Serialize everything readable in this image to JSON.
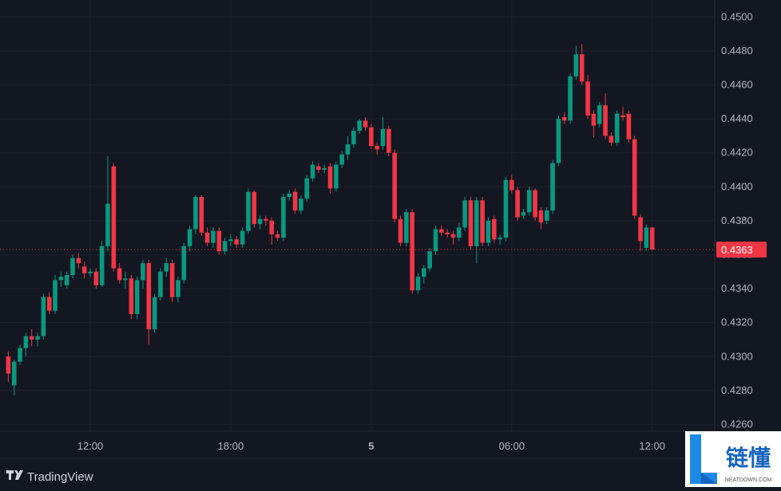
{
  "chart_data": {
    "type": "candlestick",
    "up_color": "#089981",
    "down_color": "#f23645",
    "grid": true,
    "categories": [
      null,
      null,
      null,
      null,
      null,
      null,
      null,
      null,
      null,
      null,
      null,
      null,
      null,
      null,
      "12:00",
      null,
      null,
      null,
      null,
      null,
      null,
      null,
      null,
      null,
      null,
      null,
      null,
      null,
      null,
      null,
      null,
      null,
      null,
      null,
      null,
      null,
      null,
      null,
      "18:00",
      null,
      null,
      null,
      null,
      null,
      null,
      null,
      null,
      null,
      null,
      null,
      null,
      null,
      null,
      null,
      null,
      null,
      null,
      null,
      null,
      null,
      null,
      null,
      "5",
      null,
      null,
      null,
      null,
      null,
      null,
      null,
      null,
      null,
      null,
      null,
      null,
      null,
      null,
      null,
      null,
      null,
      null,
      null,
      null,
      null,
      null,
      null,
      "06:00",
      null,
      null,
      null,
      null,
      null,
      null,
      null,
      null,
      null,
      null,
      null,
      null,
      null,
      null,
      null,
      null,
      null,
      null,
      null,
      null,
      null,
      null,
      null,
      "12:00"
    ],
    "candles": [
      [
        0.43,
        0.4303,
        0.4285,
        0.429
      ],
      [
        0.4283,
        0.4298,
        0.4277,
        0.4297
      ],
      [
        0.4297,
        0.4307,
        0.4295,
        0.4305
      ],
      [
        0.4305,
        0.4314,
        0.43,
        0.4312
      ],
      [
        0.4312,
        0.4316,
        0.4306,
        0.431
      ],
      [
        0.431,
        0.4314,
        0.4306,
        0.4312
      ],
      [
        0.4312,
        0.4337,
        0.431,
        0.4335
      ],
      [
        0.4335,
        0.4338,
        0.4325,
        0.4327
      ],
      [
        0.4327,
        0.4348,
        0.4325,
        0.4345
      ],
      [
        0.4345,
        0.435,
        0.4341,
        0.4347
      ],
      [
        0.4342,
        0.435,
        0.434,
        0.4348
      ],
      [
        0.4348,
        0.436,
        0.4346,
        0.4358
      ],
      [
        0.4358,
        0.4361,
        0.4352,
        0.4355
      ],
      [
        0.4353,
        0.4356,
        0.4346,
        0.4349
      ],
      [
        0.4349,
        0.4352,
        0.4347,
        0.435
      ],
      [
        0.435,
        0.4352,
        0.434,
        0.4342
      ],
      [
        0.4342,
        0.4368,
        0.4341,
        0.4365
      ],
      [
        0.4365,
        0.4418,
        0.4362,
        0.439
      ],
      [
        0.4412,
        0.4414,
        0.435,
        0.4352
      ],
      [
        0.4352,
        0.4355,
        0.4343,
        0.4345
      ],
      [
        0.4345,
        0.435,
        0.434,
        0.4346
      ],
      [
        0.4346,
        0.4348,
        0.4322,
        0.4325
      ],
      [
        0.4325,
        0.4347,
        0.4322,
        0.4345
      ],
      [
        0.4345,
        0.4357,
        0.434,
        0.4355
      ],
      [
        0.4355,
        0.4357,
        0.4307,
        0.4316
      ],
      [
        0.4316,
        0.4337,
        0.4314,
        0.4335
      ],
      [
        0.4335,
        0.4352,
        0.4333,
        0.435
      ],
      [
        0.435,
        0.4358,
        0.4347,
        0.4355
      ],
      [
        0.4355,
        0.4357,
        0.4332,
        0.4335
      ],
      [
        0.4335,
        0.4347,
        0.4332,
        0.4345
      ],
      [
        0.4345,
        0.4367,
        0.4343,
        0.4365
      ],
      [
        0.4365,
        0.4377,
        0.4362,
        0.4375
      ],
      [
        0.4375,
        0.4395,
        0.4372,
        0.4394
      ],
      [
        0.4394,
        0.4395,
        0.4371,
        0.4373
      ],
      [
        0.4373,
        0.4376,
        0.4365,
        0.4367
      ],
      [
        0.4367,
        0.4376,
        0.4364,
        0.4374
      ],
      [
        0.4374,
        0.4376,
        0.436,
        0.4362
      ],
      [
        0.4362,
        0.437,
        0.436,
        0.4368
      ],
      [
        0.4368,
        0.4372,
        0.4365,
        0.4369
      ],
      [
        0.4369,
        0.4371,
        0.4364,
        0.4366
      ],
      [
        0.4366,
        0.4376,
        0.4364,
        0.4374
      ],
      [
        0.4374,
        0.4399,
        0.4372,
        0.4397
      ],
      [
        0.4397,
        0.4398,
        0.4376,
        0.4378
      ],
      [
        0.4378,
        0.4383,
        0.4375,
        0.4381
      ],
      [
        0.4381,
        0.4383,
        0.4377,
        0.438
      ],
      [
        0.438,
        0.4382,
        0.4366,
        0.4372
      ],
      [
        0.4372,
        0.4374,
        0.4368,
        0.437
      ],
      [
        0.437,
        0.4396,
        0.4368,
        0.4394
      ],
      [
        0.4394,
        0.4398,
        0.4392,
        0.4396
      ],
      [
        0.4397,
        0.4399,
        0.4384,
        0.4386
      ],
      [
        0.4386,
        0.4395,
        0.4384,
        0.4393
      ],
      [
        0.4393,
        0.4407,
        0.4391,
        0.4405
      ],
      [
        0.4405,
        0.4415,
        0.4403,
        0.4413
      ],
      [
        0.4412,
        0.4414,
        0.4408,
        0.441
      ],
      [
        0.441,
        0.4413,
        0.4408,
        0.4411
      ],
      [
        0.4412,
        0.4414,
        0.4396,
        0.4399
      ],
      [
        0.4399,
        0.4415,
        0.4397,
        0.4413
      ],
      [
        0.4413,
        0.4421,
        0.4411,
        0.4419
      ],
      [
        0.4419,
        0.443,
        0.4416,
        0.4425
      ],
      [
        0.4425,
        0.4435,
        0.4423,
        0.4433
      ],
      [
        0.4433,
        0.444,
        0.4431,
        0.4439
      ],
      [
        0.4439,
        0.4441,
        0.4433,
        0.4435
      ],
      [
        0.4435,
        0.4437,
        0.4422,
        0.4424
      ],
      [
        0.4424,
        0.4426,
        0.4419,
        0.4422
      ],
      [
        0.4424,
        0.4441,
        0.4422,
        0.4434
      ],
      [
        0.4434,
        0.4436,
        0.4418,
        0.442
      ],
      [
        0.442,
        0.4422,
        0.4379,
        0.4381
      ],
      [
        0.4381,
        0.4383,
        0.4365,
        0.4367
      ],
      [
        0.4367,
        0.4387,
        0.4365,
        0.4385
      ],
      [
        0.4385,
        0.4387,
        0.4337,
        0.4339
      ],
      [
        0.4339,
        0.4349,
        0.4337,
        0.4347
      ],
      [
        0.4347,
        0.4354,
        0.4343,
        0.4352
      ],
      [
        0.4352,
        0.4364,
        0.435,
        0.4362
      ],
      [
        0.4362,
        0.4377,
        0.436,
        0.4375
      ],
      [
        0.4375,
        0.4377,
        0.4371,
        0.4373
      ],
      [
        0.4373,
        0.4375,
        0.437,
        0.4372
      ],
      [
        0.4372,
        0.4374,
        0.4366,
        0.437
      ],
      [
        0.437,
        0.4379,
        0.4368,
        0.4376
      ],
      [
        0.4376,
        0.4394,
        0.4374,
        0.4392
      ],
      [
        0.4392,
        0.4394,
        0.4363,
        0.4365
      ],
      [
        0.4365,
        0.4394,
        0.4355,
        0.4392
      ],
      [
        0.4392,
        0.4394,
        0.4365,
        0.4367
      ],
      [
        0.4367,
        0.4382,
        0.4365,
        0.438
      ],
      [
        0.4381,
        0.4383,
        0.4367,
        0.4369
      ],
      [
        0.4369,
        0.4372,
        0.4366,
        0.437
      ],
      [
        0.437,
        0.4406,
        0.4368,
        0.4404
      ],
      [
        0.4404,
        0.4407,
        0.4396,
        0.4398
      ],
      [
        0.4398,
        0.44,
        0.438,
        0.4382
      ],
      [
        0.4383,
        0.4387,
        0.4381,
        0.4385
      ],
      [
        0.4385,
        0.44,
        0.4383,
        0.4398
      ],
      [
        0.4398,
        0.4399,
        0.438,
        0.4382
      ],
      [
        0.4386,
        0.4388,
        0.4375,
        0.4379
      ],
      [
        0.438,
        0.4388,
        0.4378,
        0.4386
      ],
      [
        0.4386,
        0.4416,
        0.4384,
        0.4414
      ],
      [
        0.4414,
        0.4442,
        0.4412,
        0.444
      ],
      [
        0.4441,
        0.4444,
        0.4437,
        0.4439
      ],
      [
        0.4439,
        0.4467,
        0.4437,
        0.4465
      ],
      [
        0.4465,
        0.4483,
        0.4463,
        0.4478
      ],
      [
        0.4478,
        0.4484,
        0.446,
        0.4462
      ],
      [
        0.4462,
        0.4466,
        0.444,
        0.4442
      ],
      [
        0.4443,
        0.4445,
        0.4429,
        0.4436
      ],
      [
        0.4437,
        0.445,
        0.4435,
        0.4448
      ],
      [
        0.4448,
        0.4455,
        0.4428,
        0.443
      ],
      [
        0.443,
        0.4432,
        0.4424,
        0.4426
      ],
      [
        0.4426,
        0.4445,
        0.4424,
        0.4443
      ],
      [
        0.4442,
        0.4447,
        0.4439,
        0.4441
      ],
      [
        0.4443,
        0.4445,
        0.4426,
        0.4428
      ],
      [
        0.4428,
        0.443,
        0.4381,
        0.4383
      ],
      [
        0.4382,
        0.4384,
        0.4362,
        0.4368
      ],
      [
        0.4364,
        0.4378,
        0.4362,
        0.4376
      ],
      [
        0.4376,
        0.4376,
        0.4363,
        0.4363
      ]
    ],
    "last_price": 0.4363,
    "ylim": [
      0.4256,
      0.451
    ],
    "yticks": [
      {
        "value": 0.426,
        "label": "0.4260"
      },
      {
        "value": 0.428,
        "label": "0.4280"
      },
      {
        "value": 0.43,
        "label": "0.4300"
      },
      {
        "value": 0.432,
        "label": "0.4320"
      },
      {
        "value": 0.434,
        "label": "0.4340"
      },
      {
        "value": 0.436,
        "label": "0.4360"
      },
      {
        "value": 0.438,
        "label": "0.4380"
      },
      {
        "value": 0.44,
        "label": "0.4400"
      },
      {
        "value": 0.442,
        "label": "0.4420"
      },
      {
        "value": 0.444,
        "label": "0.4440"
      },
      {
        "value": 0.446,
        "label": "0.4460"
      },
      {
        "value": 0.448,
        "label": "0.4480"
      },
      {
        "value": 0.45,
        "label": "0.4500"
      }
    ]
  },
  "branding": "TradingView",
  "watermark": {
    "title": "链懂",
    "subtitle": "NEATDOWN.COM"
  }
}
